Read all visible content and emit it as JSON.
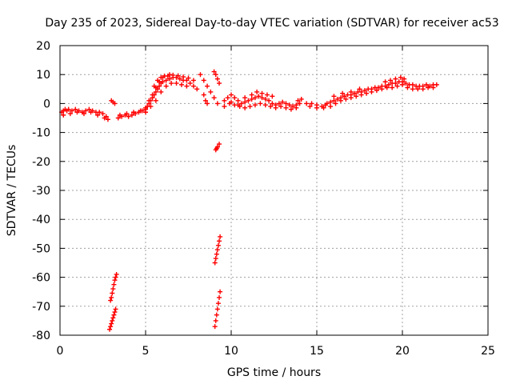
{
  "chart_data": {
    "type": "scatter",
    "title": "Day 235 of 2023, Sidereal Day-to-day VTEC variation (SDTVAR) for receiver ac53",
    "xlabel": "GPS time / hours",
    "ylabel": "SDTVAR / TECUs",
    "xlim": [
      0,
      25
    ],
    "ylim": [
      -80,
      20
    ],
    "xticks": [
      0,
      5,
      10,
      15,
      20,
      25
    ],
    "yticks": [
      -80,
      -70,
      -60,
      -50,
      -40,
      -30,
      -20,
      -10,
      0,
      10,
      20
    ],
    "grid": true,
    "marker": "plus",
    "color": "#ff0000",
    "series": [
      {
        "name": "main-trace",
        "points": [
          [
            0.1,
            -3
          ],
          [
            0.2,
            -2.5
          ],
          [
            0.3,
            -2
          ],
          [
            0.4,
            -2.5
          ],
          [
            0.5,
            -2
          ],
          [
            0.7,
            -2.5
          ],
          [
            0.9,
            -2
          ],
          [
            1.1,
            -2.5
          ],
          [
            1.3,
            -3
          ],
          [
            1.5,
            -2.5
          ],
          [
            1.7,
            -2
          ],
          [
            1.9,
            -2.5
          ],
          [
            2.1,
            -3
          ],
          [
            2.3,
            -3
          ],
          [
            2.5,
            -3.5
          ],
          [
            2.7,
            -4.5
          ],
          [
            2.8,
            -5.5
          ],
          [
            0.2,
            -4
          ],
          [
            0.6,
            -3.5
          ],
          [
            1.0,
            -3
          ],
          [
            1.4,
            -3.5
          ],
          [
            1.8,
            -3
          ],
          [
            2.2,
            -4
          ],
          [
            2.6,
            -5
          ],
          [
            3.0,
            1
          ],
          [
            3.1,
            0.5
          ],
          [
            3.2,
            0
          ],
          [
            3.4,
            -5
          ],
          [
            3.6,
            -4.5
          ],
          [
            3.8,
            -4
          ],
          [
            4.0,
            -4.5
          ],
          [
            4.2,
            -4
          ],
          [
            4.4,
            -3.5
          ],
          [
            4.6,
            -3
          ],
          [
            4.8,
            -2.5
          ],
          [
            5.0,
            -2
          ],
          [
            5.1,
            -1
          ],
          [
            5.2,
            0
          ],
          [
            5.3,
            1
          ],
          [
            5.4,
            2
          ],
          [
            5.5,
            3
          ],
          [
            5.6,
            4
          ],
          [
            5.7,
            5
          ],
          [
            5.8,
            6
          ],
          [
            5.9,
            7
          ],
          [
            6.0,
            7.5
          ],
          [
            6.2,
            8
          ],
          [
            6.4,
            8.5
          ],
          [
            6.6,
            9
          ],
          [
            6.8,
            9
          ],
          [
            7.0,
            8.5
          ],
          [
            7.2,
            8
          ],
          [
            7.4,
            8
          ],
          [
            7.6,
            7
          ],
          [
            7.8,
            6
          ],
          [
            8.0,
            5
          ],
          [
            3.5,
            -4
          ],
          [
            3.9,
            -3.5
          ],
          [
            4.3,
            -3
          ],
          [
            4.7,
            -2.5
          ],
          [
            5.0,
            -1.5
          ],
          [
            5.2,
            1
          ],
          [
            5.4,
            3
          ],
          [
            5.6,
            5.5
          ],
          [
            5.8,
            7.5
          ],
          [
            6.0,
            9
          ],
          [
            6.3,
            9.5
          ],
          [
            6.6,
            9.8
          ],
          [
            6.9,
            9.6
          ],
          [
            7.2,
            9.2
          ],
          [
            7.5,
            8.8
          ],
          [
            7.8,
            8
          ],
          [
            5.0,
            -3
          ],
          [
            5.3,
            -1
          ],
          [
            5.6,
            1
          ],
          [
            5.9,
            4
          ],
          [
            6.2,
            6
          ],
          [
            6.5,
            7
          ],
          [
            6.8,
            7
          ],
          [
            7.1,
            6.5
          ],
          [
            7.4,
            6
          ],
          [
            5.5,
            6
          ],
          [
            5.7,
            8
          ],
          [
            5.9,
            9
          ],
          [
            6.1,
            9.5
          ],
          [
            6.4,
            10
          ],
          [
            8.2,
            10
          ],
          [
            8.4,
            8
          ],
          [
            8.6,
            6
          ],
          [
            8.8,
            4
          ],
          [
            9.0,
            2
          ],
          [
            9.2,
            0
          ],
          [
            8.4,
            3
          ],
          [
            8.5,
            1
          ],
          [
            8.6,
            0
          ],
          [
            9.0,
            11
          ],
          [
            9.1,
            10
          ],
          [
            9.2,
            8.5
          ],
          [
            9.3,
            7
          ],
          [
            9.6,
            1
          ],
          [
            9.8,
            2
          ],
          [
            10.0,
            3
          ],
          [
            10.2,
            2
          ],
          [
            10.4,
            1
          ],
          [
            10.6,
            0
          ],
          [
            10.8,
            0.5
          ],
          [
            11.0,
            1
          ],
          [
            11.2,
            1.5
          ],
          [
            11.4,
            2
          ],
          [
            11.6,
            2.5
          ],
          [
            11.8,
            2
          ],
          [
            12.0,
            1.5
          ],
          [
            12.2,
            1
          ],
          [
            12.4,
            0
          ],
          [
            12.6,
            -0.5
          ],
          [
            12.8,
            0
          ],
          [
            13.0,
            0.5
          ],
          [
            13.2,
            0
          ],
          [
            13.4,
            -0.5
          ],
          [
            13.6,
            -1
          ],
          [
            13.8,
            -0.5
          ],
          [
            14.0,
            0
          ],
          [
            9.6,
            -1
          ],
          [
            9.9,
            0
          ],
          [
            10.2,
            -0.5
          ],
          [
            10.5,
            -1
          ],
          [
            10.8,
            -1.5
          ],
          [
            11.1,
            -1
          ],
          [
            11.4,
            -0.5
          ],
          [
            11.7,
            0
          ],
          [
            12.0,
            -0.5
          ],
          [
            12.3,
            -1
          ],
          [
            12.6,
            -1.5
          ],
          [
            12.9,
            -1
          ],
          [
            13.2,
            -1.5
          ],
          [
            13.5,
            -2
          ],
          [
            13.8,
            -1.5
          ],
          [
            10.0,
            0.5
          ],
          [
            10.4,
            -0.5
          ],
          [
            10.8,
            2
          ],
          [
            11.2,
            3
          ],
          [
            11.5,
            4
          ],
          [
            11.8,
            3.5
          ],
          [
            12.1,
            3
          ],
          [
            12.4,
            2.5
          ],
          [
            13.9,
            1
          ],
          [
            14.1,
            1.5
          ],
          [
            14.4,
            0
          ],
          [
            14.7,
            0
          ],
          [
            15.0,
            -0.5
          ],
          [
            15.3,
            -1
          ],
          [
            15.5,
            -0.5
          ],
          [
            14.6,
            -1
          ],
          [
            15.0,
            -1.5
          ],
          [
            15.4,
            -1.5
          ],
          [
            15.6,
            0
          ],
          [
            15.8,
            0.5
          ],
          [
            16.0,
            1
          ],
          [
            16.2,
            1.5
          ],
          [
            16.4,
            2
          ],
          [
            16.6,
            2.5
          ],
          [
            16.8,
            3
          ],
          [
            17.0,
            3
          ],
          [
            17.2,
            3.5
          ],
          [
            17.4,
            4
          ],
          [
            17.6,
            4
          ],
          [
            17.8,
            4.5
          ],
          [
            18.0,
            5
          ],
          [
            18.2,
            5
          ],
          [
            18.4,
            5.5
          ],
          [
            18.6,
            5.5
          ],
          [
            18.8,
            6
          ],
          [
            19.0,
            6
          ],
          [
            19.2,
            6.5
          ],
          [
            19.4,
            7
          ],
          [
            19.6,
            7
          ],
          [
            19.8,
            7.5
          ],
          [
            20.0,
            7.5
          ],
          [
            20.2,
            7
          ],
          [
            20.4,
            6.5
          ],
          [
            20.6,
            6.5
          ],
          [
            20.8,
            6
          ],
          [
            21.0,
            6
          ],
          [
            21.2,
            6
          ],
          [
            21.4,
            6.5
          ],
          [
            21.6,
            6
          ],
          [
            21.8,
            6.5
          ],
          [
            22.0,
            6.5
          ],
          [
            15.8,
            -1
          ],
          [
            16.1,
            0
          ],
          [
            16.4,
            1
          ],
          [
            16.7,
            1.5
          ],
          [
            17.0,
            2
          ],
          [
            17.3,
            2.5
          ],
          [
            17.6,
            3
          ],
          [
            17.9,
            3.5
          ],
          [
            18.2,
            4
          ],
          [
            18.5,
            4.5
          ],
          [
            18.8,
            5
          ],
          [
            19.1,
            5.5
          ],
          [
            19.4,
            5.5
          ],
          [
            19.7,
            6
          ],
          [
            20.0,
            6.5
          ],
          [
            20.3,
            5.5
          ],
          [
            20.6,
            5
          ],
          [
            20.9,
            5
          ],
          [
            21.2,
            5
          ],
          [
            21.5,
            5.5
          ],
          [
            21.8,
            5.5
          ],
          [
            19.0,
            7.5
          ],
          [
            19.3,
            8
          ],
          [
            19.6,
            8.5
          ],
          [
            19.9,
            9
          ],
          [
            20.1,
            8.5
          ],
          [
            16.0,
            2.5
          ],
          [
            16.5,
            3.5
          ],
          [
            17.0,
            4
          ],
          [
            17.5,
            5
          ]
        ]
      },
      {
        "name": "fragment-9h-minus15",
        "points": [
          [
            9.1,
            -16
          ],
          [
            9.15,
            -15.5
          ],
          [
            9.2,
            -15
          ],
          [
            9.3,
            -14
          ]
        ]
      },
      {
        "name": "fragment-3h-lower",
        "points": [
          [
            2.9,
            -78
          ],
          [
            2.95,
            -77
          ],
          [
            3.0,
            -76
          ],
          [
            3.05,
            -75
          ],
          [
            3.1,
            -74
          ],
          [
            3.15,
            -73
          ],
          [
            3.2,
            -72
          ],
          [
            3.25,
            -71
          ]
        ]
      },
      {
        "name": "fragment-3h-upper",
        "points": [
          [
            2.95,
            -68
          ],
          [
            3.0,
            -67
          ],
          [
            3.05,
            -65.5
          ],
          [
            3.1,
            -64
          ],
          [
            3.15,
            -62.5
          ],
          [
            3.2,
            -61
          ],
          [
            3.25,
            -60
          ],
          [
            3.3,
            -59
          ]
        ]
      },
      {
        "name": "fragment-9h-lower",
        "points": [
          [
            9.05,
            -77
          ],
          [
            9.1,
            -75
          ],
          [
            9.15,
            -73
          ],
          [
            9.2,
            -71
          ],
          [
            9.25,
            -69
          ],
          [
            9.3,
            -67
          ],
          [
            9.35,
            -65
          ]
        ]
      },
      {
        "name": "fragment-9h-upper",
        "points": [
          [
            9.05,
            -55
          ],
          [
            9.1,
            -53.5
          ],
          [
            9.15,
            -52
          ],
          [
            9.2,
            -50.5
          ],
          [
            9.25,
            -49
          ],
          [
            9.3,
            -47.5
          ],
          [
            9.35,
            -46
          ]
        ]
      }
    ]
  }
}
